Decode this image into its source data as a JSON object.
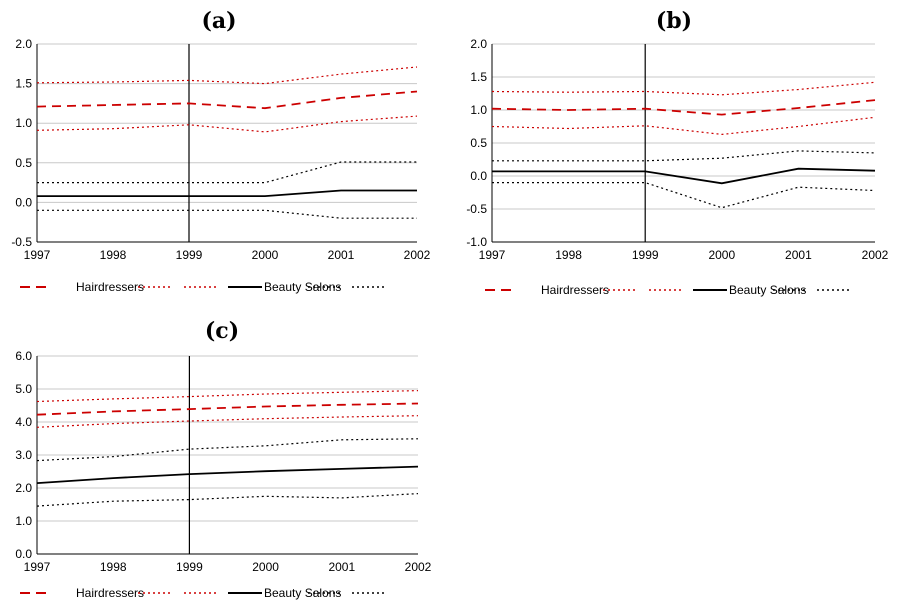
{
  "chart_data": [
    {
      "type": "line",
      "title": "(a)",
      "x": [
        "1997",
        "1998",
        "1999",
        "2000",
        "2001",
        "2002"
      ],
      "yticks": [
        "-0.5",
        "0.0",
        "0.5",
        "1.0",
        "1.5",
        "2.0"
      ],
      "ylim": [
        -0.5,
        2.0
      ],
      "vline_at": "1999",
      "grid": true,
      "legend": "bottom",
      "series": [
        {
          "name": "Hairdressers",
          "style": "dashed",
          "color": "#cc0000",
          "values": [
            1.21,
            1.23,
            1.25,
            1.19,
            1.32,
            1.4
          ]
        },
        {
          "name": "",
          "style": "dotted",
          "color": "#cc0000",
          "values": [
            1.51,
            1.52,
            1.54,
            1.5,
            1.62,
            1.71
          ]
        },
        {
          "name": "",
          "style": "dotted",
          "color": "#cc0000",
          "values": [
            0.91,
            0.93,
            0.98,
            0.89,
            1.02,
            1.09
          ]
        },
        {
          "name": "Beauty Salons",
          "style": "solid",
          "color": "#000000",
          "values": [
            0.08,
            0.08,
            0.08,
            0.08,
            0.15,
            0.15
          ]
        },
        {
          "name": "",
          "style": "dotted",
          "color": "#000000",
          "values": [
            0.25,
            0.25,
            0.25,
            0.25,
            0.51,
            0.51
          ]
        },
        {
          "name": "",
          "style": "dotted",
          "color": "#000000",
          "values": [
            -0.1,
            -0.1,
            -0.1,
            -0.1,
            -0.2,
            -0.2
          ]
        }
      ]
    },
    {
      "type": "line",
      "title": "(b)",
      "x": [
        "1997",
        "1998",
        "1999",
        "2000",
        "2001",
        "2002"
      ],
      "yticks": [
        "-1.0",
        "-0.5",
        "0.0",
        "0.5",
        "1.0",
        "1.5",
        "2.0"
      ],
      "ylim": [
        -1.0,
        2.0
      ],
      "vline_at": "1999",
      "grid": true,
      "legend": "bottom",
      "series": [
        {
          "name": "Hairdressers",
          "style": "dashed",
          "color": "#cc0000",
          "values": [
            1.02,
            1.0,
            1.02,
            0.93,
            1.03,
            1.15
          ]
        },
        {
          "name": "",
          "style": "dotted",
          "color": "#cc0000",
          "values": [
            1.28,
            1.27,
            1.28,
            1.23,
            1.31,
            1.42
          ]
        },
        {
          "name": "",
          "style": "dotted",
          "color": "#cc0000",
          "values": [
            0.75,
            0.72,
            0.76,
            0.63,
            0.75,
            0.89
          ]
        },
        {
          "name": "Beauty Salons",
          "style": "solid",
          "color": "#000000",
          "values": [
            0.07,
            0.07,
            0.07,
            -0.11,
            0.11,
            0.08
          ]
        },
        {
          "name": "",
          "style": "dotted",
          "color": "#000000",
          "values": [
            0.23,
            0.23,
            0.23,
            0.27,
            0.38,
            0.35
          ]
        },
        {
          "name": "",
          "style": "dotted",
          "color": "#000000",
          "values": [
            -0.1,
            -0.1,
            -0.1,
            -0.48,
            -0.17,
            -0.22
          ]
        }
      ]
    },
    {
      "type": "line",
      "title": "(c)",
      "x": [
        "1997",
        "1998",
        "1999",
        "2000",
        "2001",
        "2002"
      ],
      "yticks": [
        "0.0",
        "1.0",
        "2.0",
        "3.0",
        "4.0",
        "5.0",
        "6.0"
      ],
      "ylim": [
        0,
        6.0
      ],
      "vline_at": "1999",
      "grid": true,
      "legend": "bottom",
      "series": [
        {
          "name": "Hairdressers",
          "style": "dashed",
          "color": "#cc0000",
          "values": [
            4.22,
            4.32,
            4.39,
            4.47,
            4.52,
            4.56
          ]
        },
        {
          "name": "",
          "style": "dotted",
          "color": "#cc0000",
          "values": [
            4.62,
            4.7,
            4.77,
            4.85,
            4.9,
            4.95
          ]
        },
        {
          "name": "",
          "style": "dotted",
          "color": "#cc0000",
          "values": [
            3.84,
            3.95,
            4.03,
            4.1,
            4.15,
            4.19
          ]
        },
        {
          "name": "Beauty Salons",
          "style": "solid",
          "color": "#000000",
          "values": [
            2.15,
            2.3,
            2.42,
            2.51,
            2.58,
            2.65
          ]
        },
        {
          "name": "",
          "style": "dotted",
          "color": "#000000",
          "values": [
            2.83,
            2.95,
            3.18,
            3.28,
            3.46,
            3.49
          ]
        },
        {
          "name": "",
          "style": "dotted",
          "color": "#000000",
          "values": [
            1.45,
            1.6,
            1.65,
            1.75,
            1.7,
            1.83
          ]
        }
      ]
    }
  ]
}
